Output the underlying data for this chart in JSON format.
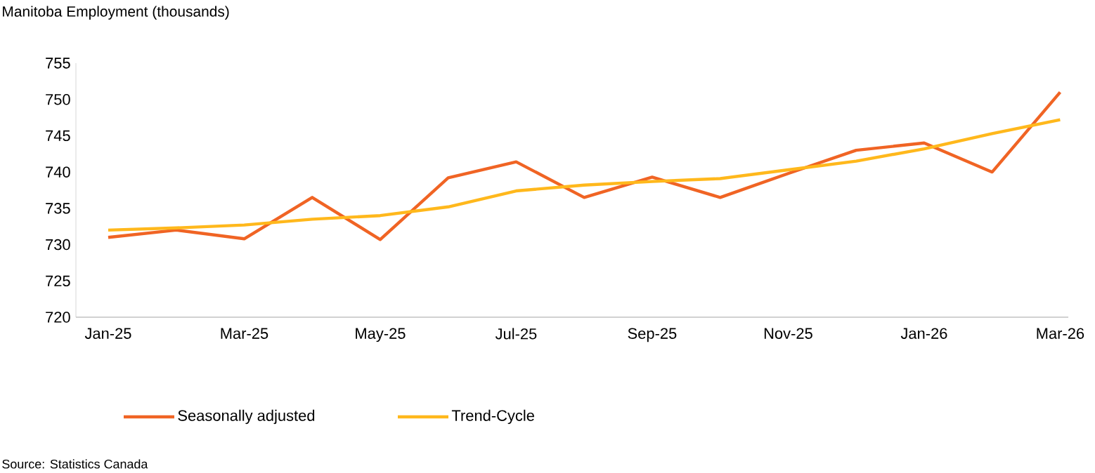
{
  "chart_data": {
    "type": "line",
    "title": "Manitoba Employment (thousands)",
    "categories": [
      "Jan-25",
      null,
      "Mar-25",
      null,
      "May-25",
      null,
      "Jul-25",
      null,
      "Sep-25",
      null,
      "Nov-25",
      null,
      "Jan-26",
      null,
      "Mar-26"
    ],
    "series": [
      {
        "name": "Seasonally adjusted",
        "color": "#f06424",
        "values": [
          731.0,
          732.0,
          730.8,
          736.5,
          730.7,
          739.2,
          741.4,
          736.5,
          739.3,
          736.5,
          739.8,
          743.0,
          744.0,
          740.0,
          751.0
        ]
      },
      {
        "name": "Trend-Cycle",
        "color": "#ffb81c",
        "values": [
          732.0,
          732.3,
          732.7,
          733.5,
          734.0,
          735.2,
          737.4,
          738.2,
          738.7,
          739.1,
          740.3,
          741.5,
          743.2,
          745.3,
          747.2
        ]
      }
    ],
    "ylim": [
      720,
      755
    ],
    "yticks": [
      720,
      725,
      730,
      735,
      740,
      745,
      750,
      755
    ],
    "legend": "bottom",
    "grid": false,
    "annotations": [
      "Source: Statistics Canada"
    ]
  }
}
